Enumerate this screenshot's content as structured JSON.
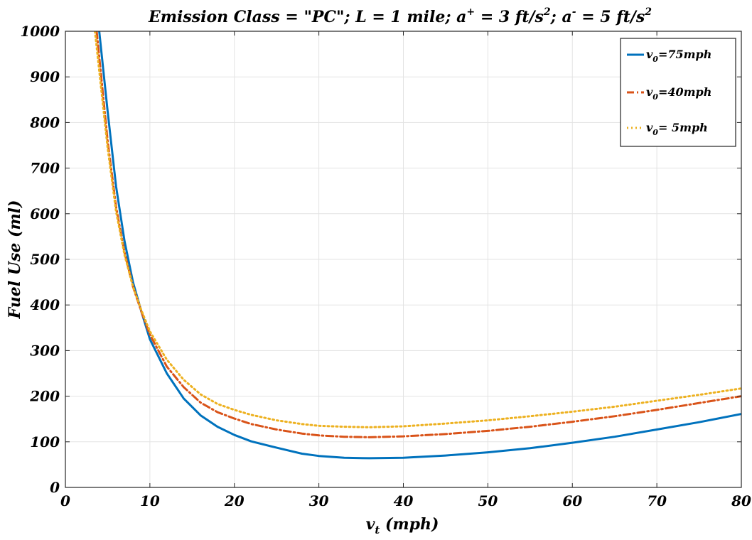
{
  "chart_data": {
    "type": "line",
    "title": {
      "prefix": "Emission Class = \"PC\"; L = 1 mile; a",
      "sup1": "+",
      "mid1": " = 3 ft/s",
      "sup2": "2",
      "mid2": "; a",
      "sup3": "-",
      "mid3": " = 5 ft/s",
      "sup4": "2"
    },
    "xlabel": {
      "main": "v",
      "sub": "t",
      "rest": " (mph)"
    },
    "ylabel": "Fuel Use (ml)",
    "xlim": [
      0,
      80
    ],
    "ylim": [
      0,
      1000
    ],
    "xticks": [
      0,
      10,
      20,
      30,
      40,
      50,
      60,
      70,
      80
    ],
    "yticks": [
      0,
      100,
      200,
      300,
      400,
      500,
      600,
      700,
      800,
      900,
      1000
    ],
    "grid": true,
    "legend_position": "top-right",
    "series": [
      {
        "legend": {
          "main": "v",
          "sub": "0",
          "rest": "=75mph"
        },
        "color": "#0072bd",
        "style": "solid",
        "x": [
          4.0,
          5,
          6,
          7,
          8,
          9,
          10,
          12,
          14,
          16,
          18,
          20,
          22,
          25,
          28,
          30,
          33,
          36,
          40,
          45,
          50,
          55,
          60,
          65,
          70,
          75,
          80
        ],
        "y": [
          1000,
          825,
          660,
          540,
          450,
          385,
          325,
          250,
          195,
          158,
          133,
          115,
          101,
          87,
          74,
          69,
          65,
          64,
          65,
          70,
          77,
          86,
          98,
          111,
          127,
          143,
          161
        ]
      },
      {
        "legend": {
          "main": "v",
          "sub": "0",
          "rest": "=40mph"
        },
        "color": "#d95319",
        "style": "dashdot",
        "x": [
          3.7,
          5,
          6,
          7,
          8,
          9,
          10,
          12,
          14,
          16,
          18,
          20,
          22,
          25,
          28,
          30,
          33,
          36,
          40,
          45,
          50,
          55,
          60,
          65,
          70,
          75,
          80
        ],
        "y": [
          1000,
          760,
          615,
          515,
          440,
          385,
          335,
          265,
          220,
          186,
          165,
          151,
          139,
          127,
          118,
          114,
          111,
          110,
          112,
          117,
          124,
          133,
          144,
          156,
          170,
          185,
          200
        ]
      },
      {
        "legend": {
          "main": "v",
          "sub": "0",
          "rest": "= 5mph"
        },
        "color": "#edb120",
        "style": "dotted",
        "x": [
          3.5,
          5,
          6,
          7,
          8,
          9,
          10,
          12,
          14,
          16,
          18,
          20,
          22,
          25,
          28,
          30,
          33,
          36,
          40,
          45,
          50,
          55,
          60,
          65,
          70,
          75,
          80
        ],
        "y": [
          1000,
          745,
          605,
          510,
          440,
          388,
          342,
          280,
          236,
          204,
          183,
          170,
          159,
          147,
          139,
          135,
          133,
          132,
          134,
          140,
          147,
          156,
          166,
          177,
          190,
          203,
          217
        ]
      }
    ]
  }
}
